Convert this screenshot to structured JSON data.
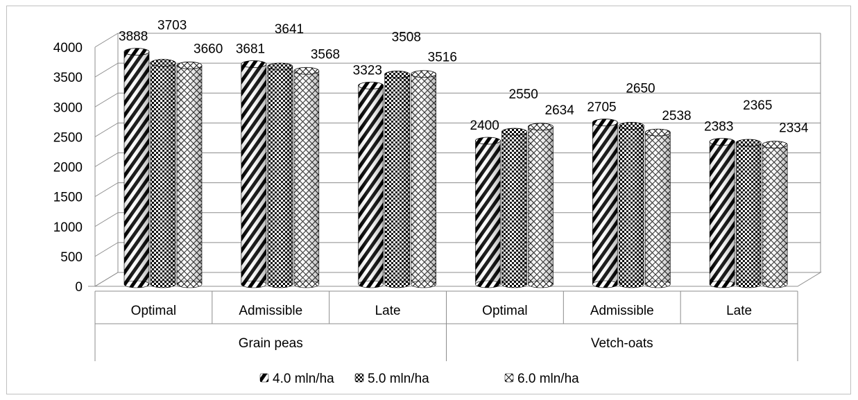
{
  "chart_data": {
    "type": "bar",
    "style": "3D cylinder clustered columns",
    "groups": [
      {
        "label": "Grain peas",
        "categories": [
          "Optimal",
          "Admissible",
          "Late"
        ]
      },
      {
        "label": "Vetch-oats",
        "categories": [
          "Optimal",
          "Admissible",
          "Late"
        ]
      }
    ],
    "categories": [
      "Optimal",
      "Admissible",
      "Late",
      "Optimal",
      "Admissible",
      "Late"
    ],
    "series": [
      {
        "name": "4.0 mln/ha",
        "values": [
          3888,
          3681,
          3323,
          2400,
          2705,
          2383
        ],
        "pattern": "diagonal-stripes"
      },
      {
        "name": "5.0 mln/ha",
        "values": [
          3703,
          3641,
          3508,
          2550,
          2650,
          2365
        ],
        "pattern": "checker"
      },
      {
        "name": "6.0 mln/ha",
        "values": [
          3660,
          3568,
          3516,
          2634,
          2538,
          2334
        ],
        "pattern": "cross-hatch"
      }
    ],
    "yticks": [
      "0",
      "500",
      "1000",
      "1500",
      "2000",
      "2500",
      "3000",
      "3500",
      "4000"
    ],
    "ylim": [
      0,
      4000
    ],
    "grid": true,
    "legend_position": "bottom"
  }
}
